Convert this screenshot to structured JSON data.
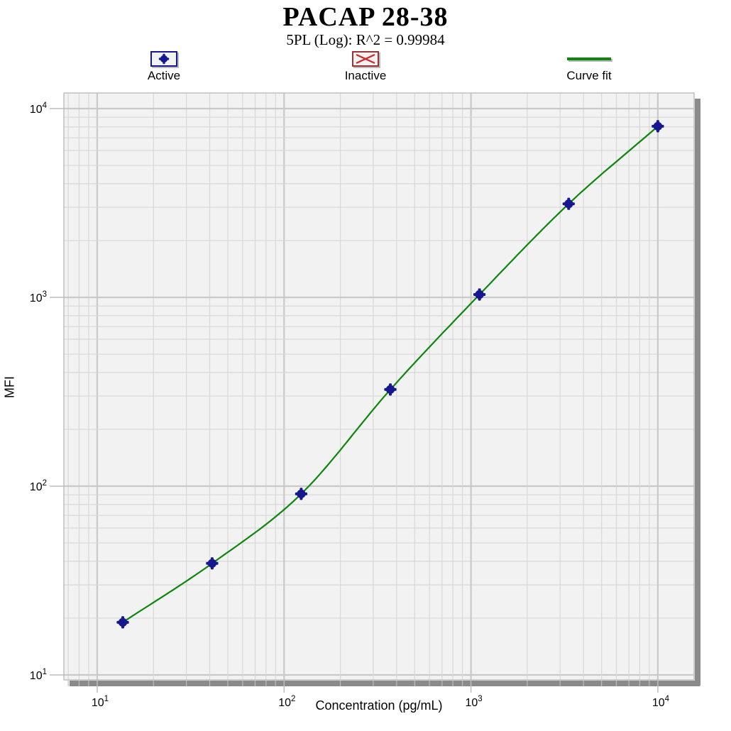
{
  "header": {
    "title": "PACAP 28-38",
    "subtitle": "5PL (Log): R^2 = 0.99984"
  },
  "legend": {
    "active_label": "Active",
    "inactive_label": "Inactive",
    "curve_label": "Curve fit"
  },
  "axes": {
    "x_title": "Concentration (pg/mL)",
    "y_title": "MFI"
  },
  "colors": {
    "marker": "#17178f",
    "curve": "#0c860c",
    "inactive_border": "#9a3434",
    "inactive_x": "#cc2a2a",
    "plot_bg": "#f2f2f2",
    "grid_major": "#c9c9c9",
    "grid_minor": "#d8d8d8",
    "plot_border": "#bcbcbc",
    "shadow": "#8a8a8a",
    "tick": "#bdbdbd",
    "text": "#000000"
  },
  "chart_data": {
    "type": "scatter",
    "title": "PACAP 28-38",
    "subtitle": "5PL (Log): R^2 = 0.99984",
    "xlabel": "Concentration (pg/mL)",
    "ylabel": "MFI",
    "x_scale": "log10",
    "y_scale": "log10",
    "x_ticks": [
      10,
      100,
      1000,
      10000
    ],
    "y_ticks": [
      10,
      100,
      1000,
      10000
    ],
    "xlim_log": [
      0.8216,
      4.194
    ],
    "ylim_log": [
      0.9737,
      4.0827
    ],
    "grid": "log major + minor, on",
    "legend_position": "top, horizontal",
    "legend_entries": [
      {
        "label": "Active",
        "symbol": "filled-circle-marker",
        "color": "#17178f"
      },
      {
        "label": "Inactive",
        "symbol": "red-x-box",
        "color": "#9a3434"
      },
      {
        "label": "Curve fit",
        "symbol": "line",
        "color": "#0c860c"
      }
    ],
    "series": [
      {
        "name": "Active",
        "role": "standard points",
        "points_x_concentration_pg_mL": [
          13.7,
          41.2,
          123.5,
          370.4,
          1111,
          3333,
          10000
        ],
        "points_y_MFI": [
          19,
          39,
          91,
          325,
          1035,
          3130,
          8060
        ]
      },
      {
        "name": "Curve fit",
        "role": "5PL logistic fit through the standard points",
        "r_squared": 0.99984
      }
    ]
  }
}
